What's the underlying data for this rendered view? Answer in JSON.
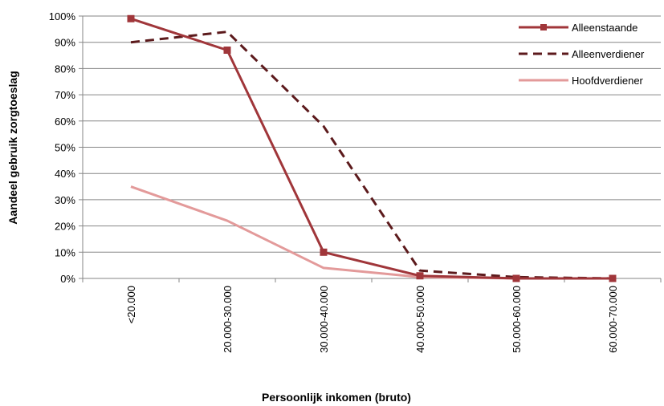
{
  "chart_data": {
    "type": "line",
    "title": "",
    "xlabel": "Persoonlijk inkomen (bruto)",
    "ylabel": "Aandeel gebruik zorgtoeslag",
    "categories": [
      "<20.000",
      "20.000-30.000",
      "30.000-40.000",
      "40.000-50.000",
      "50.000-60.000",
      "60.000-70.000"
    ],
    "ylim": [
      0,
      100
    ],
    "yticks": [
      "0%",
      "10%",
      "20%",
      "30%",
      "40%",
      "50%",
      "60%",
      "70%",
      "80%",
      "90%",
      "100%"
    ],
    "grid": true,
    "legend_position": "right",
    "series": [
      {
        "name": "Alleenstaande",
        "values": [
          99,
          87,
          10,
          1,
          0,
          0
        ],
        "color": "#a0363a",
        "style": "solid",
        "marker": "square"
      },
      {
        "name": "Alleenverdiener",
        "values": [
          90,
          94,
          58,
          3,
          0.5,
          0
        ],
        "color": "#5c1a1c",
        "style": "dashed",
        "marker": "none"
      },
      {
        "name": "Hoofdverdiener",
        "values": [
          35,
          22,
          4,
          0.5,
          0,
          0
        ],
        "color": "#e39a9a",
        "style": "solid",
        "marker": "none"
      }
    ]
  }
}
